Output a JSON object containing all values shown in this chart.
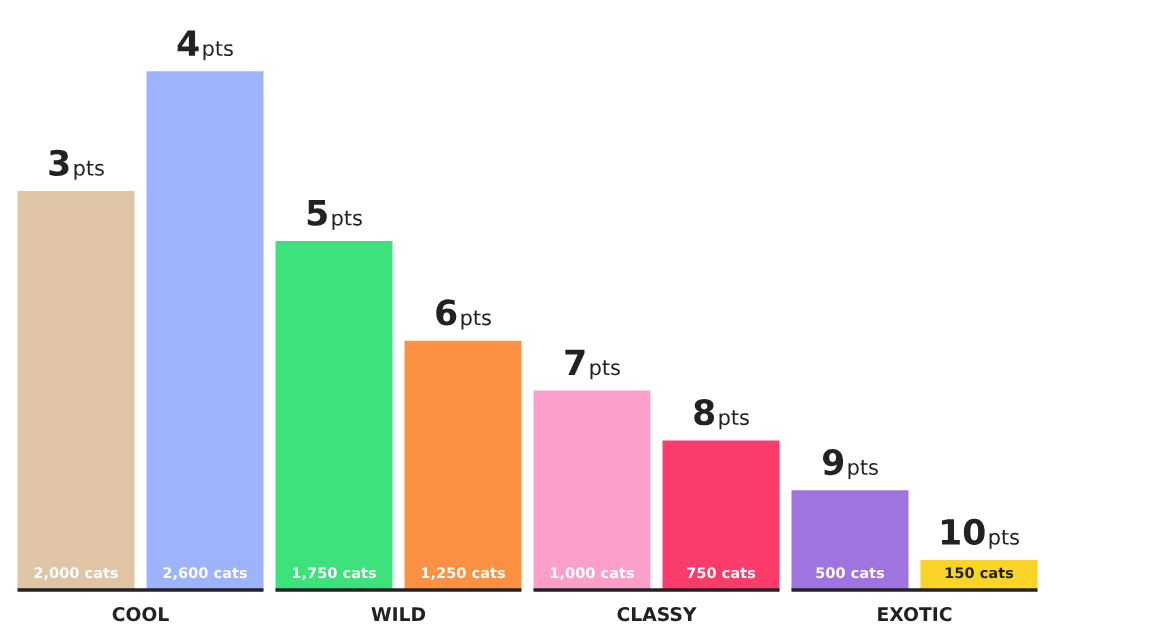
{
  "chart_data": {
    "type": "bar",
    "categories": [
      "COOL",
      "WILD",
      "CLASSY",
      "EXOTIC"
    ],
    "series": [
      {
        "values": [
          2000,
          1750,
          1000,
          500
        ],
        "colors": [
          "#dfc4a6",
          "#3de27c",
          "#fc9fcb",
          "#a074de"
        ],
        "value_labels": [
          "2,000 cats",
          "1,750 cats",
          "1,000 cats",
          "500 cats"
        ]
      },
      {
        "values": [
          2600,
          1250,
          750,
          150
        ],
        "colors": [
          "#9db4fc",
          "#fc9144",
          "#fb3b6b",
          "#fad427"
        ],
        "value_labels": [
          "2,600 cats",
          "1,250 cats",
          "750 cats",
          "150 cats"
        ]
      }
    ],
    "tick_labels": "x",
    "annotations": [
      "3pts",
      "4pts",
      "5pts",
      "6pts",
      "7pts",
      "8pts",
      "9pts",
      "10pts"
    ]
  }
}
